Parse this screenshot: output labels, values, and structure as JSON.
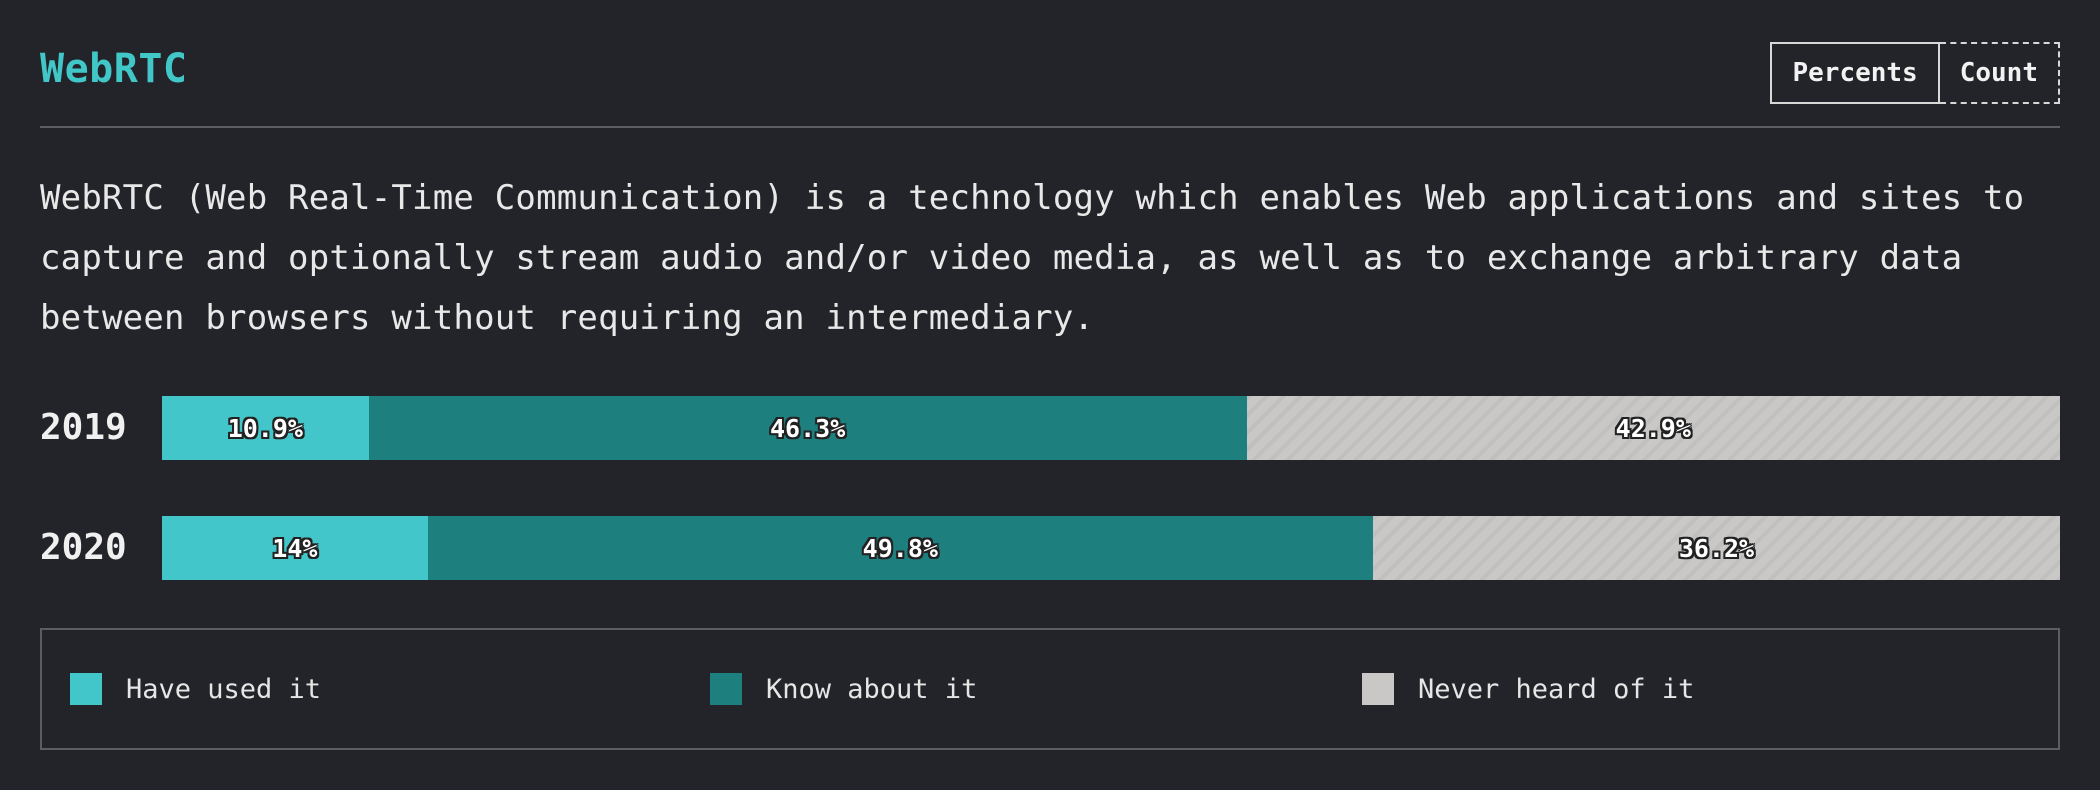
{
  "block": {
    "title": "WebRTC",
    "description": "WebRTC (Web Real-Time Communication) is a technology which enables Web applications and sites to capture and optionally stream audio and/or video media, as well as to exchange arbitrary data between browsers without requiring an intermediary.",
    "toggle": {
      "percents_label": "Percents",
      "count_label": "Count",
      "selected": "Percents"
    }
  },
  "colors": {
    "accent": "#41c7c7",
    "have_used": "#43c6c9",
    "know_about": "#1e7f7f",
    "never_heard": "#c9c8c7",
    "background": "#232429"
  },
  "chart_data": {
    "type": "bar",
    "orientation": "horizontal",
    "stacked": true,
    "categories": [
      "2019",
      "2020"
    ],
    "series": [
      {
        "name": "Have used it",
        "values": [
          10.9,
          14
        ],
        "labels": [
          "10.9%",
          "14%"
        ]
      },
      {
        "name": "Know about it",
        "values": [
          46.3,
          49.8
        ],
        "labels": [
          "46.3%",
          "49.8%"
        ]
      },
      {
        "name": "Never heard of it",
        "values": [
          42.9,
          36.2
        ],
        "labels": [
          "42.9%",
          "36.2%"
        ]
      }
    ],
    "xlim": [
      0,
      100
    ],
    "grid": false,
    "legend": "bottom"
  }
}
